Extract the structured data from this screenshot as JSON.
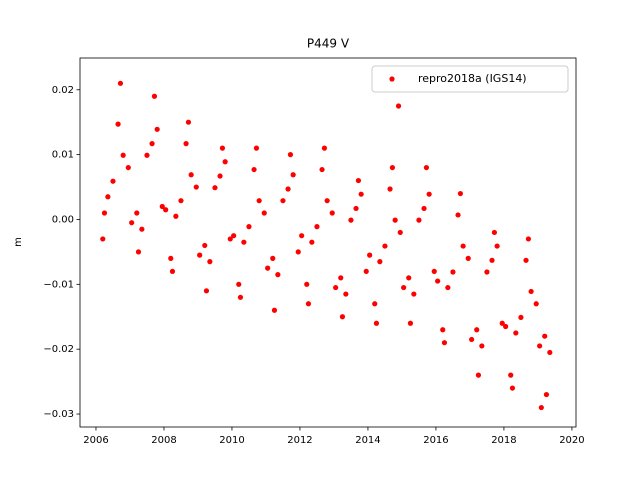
{
  "chart_data": {
    "type": "scatter",
    "title": "P449 V",
    "ylabel": "m",
    "series": [
      {
        "name": "repro2018a (IGS14)",
        "color": "#ff0000",
        "x": [
          2006.2,
          2006.25,
          2006.35,
          2006.5,
          2006.65,
          2006.72,
          2006.8,
          2006.95,
          2007.05,
          2007.2,
          2007.25,
          2007.35,
          2007.5,
          2007.65,
          2007.72,
          2007.8,
          2007.95,
          2008.05,
          2008.2,
          2008.25,
          2008.35,
          2008.5,
          2008.65,
          2008.72,
          2008.8,
          2008.95,
          2009.05,
          2009.2,
          2009.25,
          2009.35,
          2009.5,
          2009.65,
          2009.72,
          2009.8,
          2009.95,
          2010.05,
          2010.2,
          2010.25,
          2010.35,
          2010.5,
          2010.65,
          2010.72,
          2010.8,
          2010.95,
          2011.05,
          2011.2,
          2011.25,
          2011.35,
          2011.5,
          2011.65,
          2011.72,
          2011.8,
          2011.95,
          2012.05,
          2012.2,
          2012.25,
          2012.35,
          2012.5,
          2012.65,
          2012.72,
          2012.8,
          2012.95,
          2013.05,
          2013.2,
          2013.25,
          2013.35,
          2013.5,
          2013.65,
          2013.72,
          2013.8,
          2013.95,
          2014.05,
          2014.2,
          2014.25,
          2014.35,
          2014.5,
          2014.65,
          2014.72,
          2014.8,
          2014.9,
          2014.95,
          2015.05,
          2015.2,
          2015.25,
          2015.35,
          2015.5,
          2015.65,
          2015.72,
          2015.8,
          2015.95,
          2016.05,
          2016.2,
          2016.25,
          2016.35,
          2016.5,
          2016.65,
          2016.72,
          2016.8,
          2016.95,
          2017.05,
          2017.2,
          2017.25,
          2017.35,
          2017.5,
          2017.65,
          2017.72,
          2017.8,
          2017.95,
          2018.05,
          2018.2,
          2018.25,
          2018.35,
          2018.5,
          2018.65,
          2018.72,
          2018.8,
          2018.95,
          2019.05,
          2019.1,
          2019.2,
          2019.25,
          2019.35
        ],
        "values": [
          -0.003,
          0.001,
          0.0035,
          0.0059,
          0.0147,
          0.021,
          0.0099,
          0.008,
          -0.0005,
          0.001,
          -0.005,
          -0.0015,
          0.0099,
          0.0117,
          0.019,
          0.0139,
          0.002,
          0.0015,
          -0.006,
          -0.008,
          0.0005,
          0.0029,
          0.0117,
          0.015,
          0.0069,
          0.005,
          -0.0055,
          -0.004,
          -0.011,
          -0.0065,
          0.0049,
          0.0067,
          0.011,
          0.0089,
          -0.003,
          -0.0025,
          -0.01,
          -0.012,
          -0.0035,
          -0.0011,
          0.0077,
          0.011,
          0.0029,
          0.001,
          -0.0075,
          -0.006,
          -0.014,
          -0.0085,
          0.0029,
          0.0047,
          0.01,
          0.0069,
          -0.005,
          -0.0025,
          -0.01,
          -0.013,
          -0.0035,
          -0.0011,
          0.0077,
          0.011,
          0.0029,
          0.001,
          -0.0105,
          -0.009,
          -0.015,
          -0.0115,
          -0.0001,
          0.0017,
          0.006,
          0.0039,
          -0.008,
          -0.0055,
          -0.013,
          -0.016,
          -0.0065,
          -0.0041,
          0.0047,
          0.008,
          -0.0001,
          0.0175,
          -0.002,
          -0.0105,
          -0.009,
          -0.016,
          -0.0115,
          -0.0001,
          0.0017,
          0.008,
          0.0039,
          -0.008,
          -0.0095,
          -0.017,
          -0.019,
          -0.0105,
          -0.0081,
          0.0007,
          0.004,
          -0.0041,
          -0.006,
          -0.0185,
          -0.017,
          -0.024,
          -0.0195,
          -0.0081,
          -0.0063,
          -0.002,
          -0.0041,
          -0.016,
          -0.0165,
          -0.024,
          -0.026,
          -0.0175,
          -0.0151,
          -0.0063,
          -0.003,
          -0.0111,
          -0.013,
          -0.0195,
          -0.029,
          -0.018,
          -0.027,
          -0.0205
        ]
      }
    ],
    "xlim": [
      2005.53,
      2020.12
    ],
    "xticks": [
      2006,
      2008,
      2010,
      2012,
      2014,
      2016,
      2018,
      2020
    ],
    "ylim": [
      -0.032,
      0.0249
    ],
    "yticks": [
      {
        "value": -0.03,
        "label": "−0.03"
      },
      {
        "value": -0.02,
        "label": "−0.02"
      },
      {
        "value": -0.01,
        "label": "−0.01"
      },
      {
        "value": 0,
        "label": "0.00"
      },
      0.01,
      0.02
    ],
    "legend": "upper right",
    "grid": false
  }
}
